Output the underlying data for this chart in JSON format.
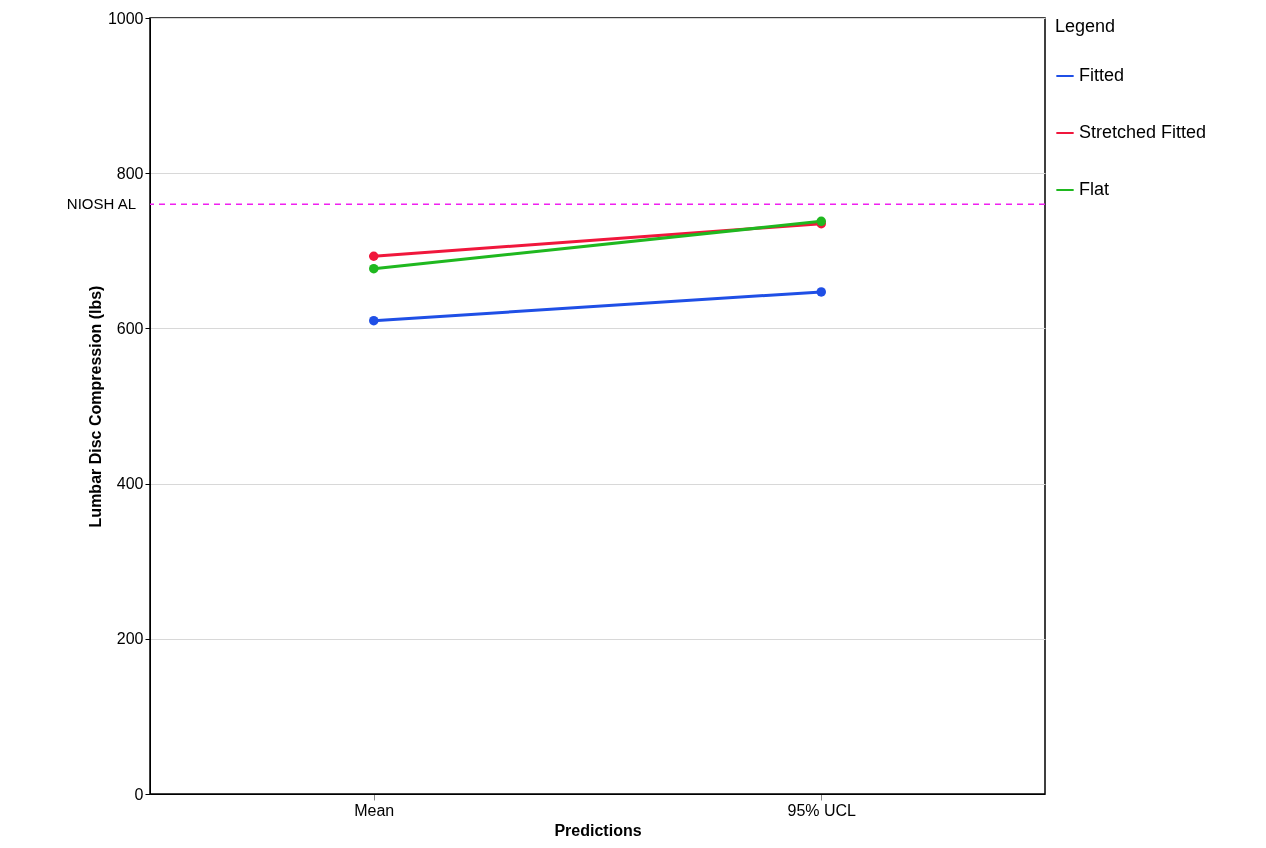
{
  "chart_data": {
    "type": "line",
    "xlabel": "Predictions",
    "ylabel": "Lumbar Disc Compression (lbs)",
    "legend_title": "Legend",
    "categories": [
      "Mean",
      "95% UCL"
    ],
    "series": [
      {
        "name": "Fitted",
        "color": "#1f4fe6",
        "values": [
          610,
          647
        ]
      },
      {
        "name": "Stretched Fitted",
        "color": "#f0173c",
        "values": [
          693,
          735
        ]
      },
      {
        "name": "Flat",
        "color": "#1fb81f",
        "values": [
          677,
          738
        ]
      }
    ],
    "ylim": [
      0,
      1000
    ],
    "yticks": [
      0,
      200,
      400,
      600,
      800,
      1000
    ],
    "grid": "y",
    "legend": "top right",
    "marker": "circle",
    "line_style": "solid",
    "ref_lines": [
      {
        "axis": "y",
        "value": 760,
        "label": "NIOSH AL",
        "color": "#f020f0",
        "line_style": "dashed"
      }
    ]
  }
}
